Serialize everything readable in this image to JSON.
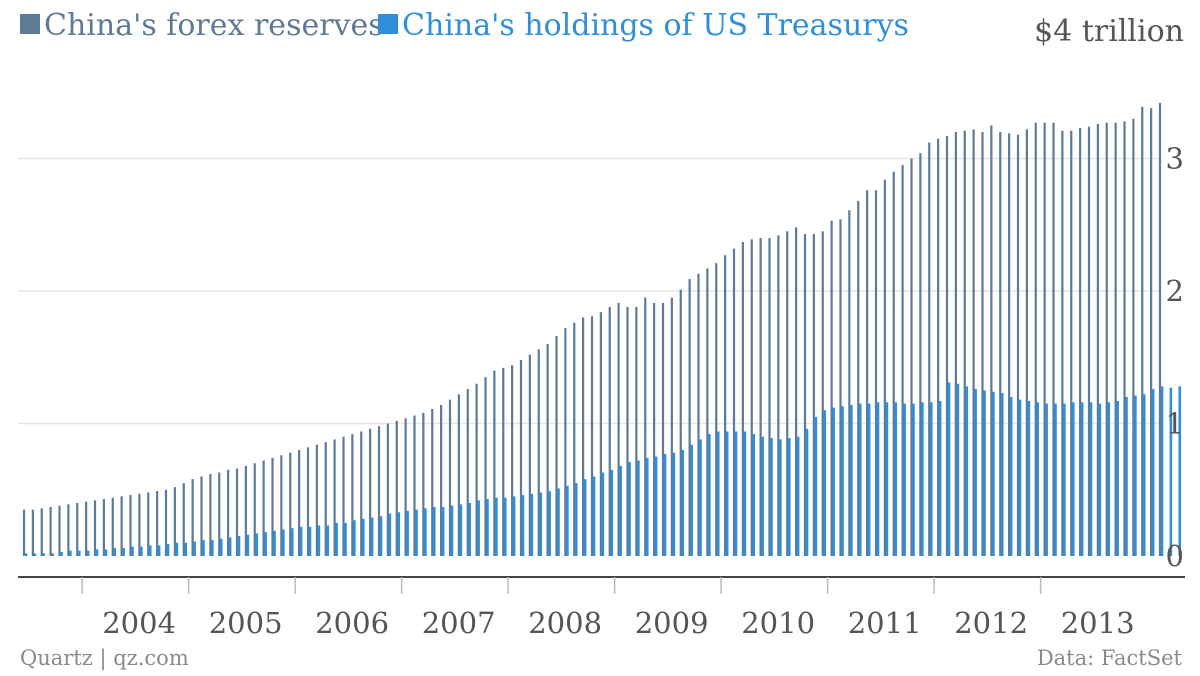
{
  "legend": {
    "series1": "China's forex reserves",
    "series2": "China's holdings of US Treasurys"
  },
  "y_unit_label": "$4 trillion",
  "source_left": "Quartz | qz.com",
  "source_right": "Data: FactSet",
  "colors": {
    "reserves": "#5f7a96",
    "treasurys": "#2f8fdc",
    "grid": "#e6e6e6",
    "axis": "#444444",
    "text": "#555555"
  },
  "chart_data": {
    "type": "bar",
    "title": "",
    "xlabel": "",
    "ylabel": "",
    "ylim": [
      0,
      4
    ],
    "y_ticks": [
      0,
      1,
      2,
      3
    ],
    "x_ticks": [
      "2004",
      "2005",
      "2006",
      "2007",
      "2008",
      "2009",
      "2010",
      "2011",
      "2012",
      "2013"
    ],
    "grid": true,
    "legend_position": "top-left",
    "start_period": "2003-06",
    "end_period": "2013-06",
    "frequency": "monthly",
    "series": [
      {
        "name": "China's forex reserves",
        "values": [
          0.35,
          0.35,
          0.36,
          0.37,
          0.38,
          0.39,
          0.4,
          0.41,
          0.42,
          0.43,
          0.44,
          0.45,
          0.46,
          0.47,
          0.48,
          0.49,
          0.5,
          0.52,
          0.55,
          0.58,
          0.6,
          0.62,
          0.63,
          0.65,
          0.66,
          0.68,
          0.7,
          0.72,
          0.74,
          0.76,
          0.78,
          0.8,
          0.82,
          0.84,
          0.86,
          0.88,
          0.9,
          0.92,
          0.94,
          0.96,
          0.98,
          1.0,
          1.02,
          1.04,
          1.06,
          1.08,
          1.11,
          1.14,
          1.18,
          1.22,
          1.26,
          1.3,
          1.35,
          1.4,
          1.42,
          1.44,
          1.48,
          1.52,
          1.56,
          1.6,
          1.66,
          1.72,
          1.76,
          1.8,
          1.81,
          1.84,
          1.88,
          1.91,
          1.88,
          1.88,
          1.95,
          1.91,
          1.91,
          1.95,
          2.01,
          2.09,
          2.13,
          2.17,
          2.21,
          2.27,
          2.32,
          2.37,
          2.39,
          2.4,
          2.4,
          2.42,
          2.45,
          2.48,
          2.43,
          2.43,
          2.45,
          2.53,
          2.54,
          2.61,
          2.68,
          2.76,
          2.76,
          2.84,
          2.9,
          2.95,
          3.0,
          3.04,
          3.12,
          3.15,
          3.17,
          3.2,
          3.21,
          3.22,
          3.2,
          3.25,
          3.2,
          3.19,
          3.18,
          3.22,
          3.27,
          3.27,
          3.27,
          3.21,
          3.21,
          3.23,
          3.24,
          3.26,
          3.27,
          3.27,
          3.28,
          3.3,
          3.39,
          3.38,
          3.42
        ],
        "color": "#5f7a96"
      },
      {
        "name": "China's holdings of US Treasurys",
        "values": [
          0.02,
          0.02,
          0.02,
          0.02,
          0.03,
          0.04,
          0.04,
          0.04,
          0.05,
          0.05,
          0.06,
          0.06,
          0.07,
          0.07,
          0.08,
          0.08,
          0.09,
          0.1,
          0.1,
          0.11,
          0.12,
          0.12,
          0.13,
          0.14,
          0.15,
          0.16,
          0.17,
          0.18,
          0.19,
          0.2,
          0.21,
          0.22,
          0.22,
          0.23,
          0.23,
          0.25,
          0.25,
          0.27,
          0.28,
          0.29,
          0.3,
          0.32,
          0.33,
          0.34,
          0.35,
          0.36,
          0.37,
          0.37,
          0.38,
          0.39,
          0.4,
          0.42,
          0.43,
          0.44,
          0.44,
          0.45,
          0.46,
          0.47,
          0.48,
          0.49,
          0.51,
          0.53,
          0.55,
          0.58,
          0.6,
          0.63,
          0.65,
          0.68,
          0.71,
          0.72,
          0.74,
          0.75,
          0.77,
          0.78,
          0.8,
          0.84,
          0.88,
          0.92,
          0.94,
          0.94,
          0.94,
          0.94,
          0.92,
          0.9,
          0.89,
          0.88,
          0.89,
          0.9,
          0.96,
          1.05,
          1.1,
          1.12,
          1.13,
          1.14,
          1.15,
          1.15,
          1.16,
          1.16,
          1.16,
          1.15,
          1.15,
          1.16,
          1.16,
          1.17,
          1.31,
          1.3,
          1.28,
          1.26,
          1.25,
          1.24,
          1.23,
          1.2,
          1.18,
          1.17,
          1.16,
          1.15,
          1.15,
          1.15,
          1.16,
          1.16,
          1.16,
          1.15,
          1.16,
          1.17,
          1.2,
          1.21,
          1.22,
          1.26,
          1.28,
          1.27,
          1.28
        ],
        "color": "#2f8fdc"
      }
    ]
  }
}
